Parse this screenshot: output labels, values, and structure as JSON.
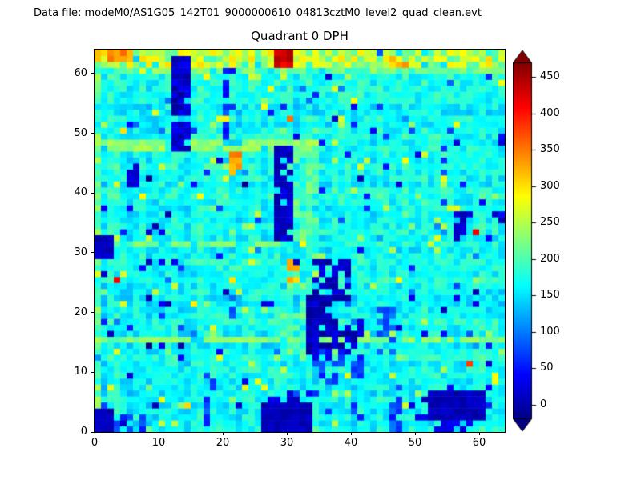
{
  "header": {
    "data_file_label": "Data file: modeM0/AS1G05_142T01_9000000610_04813cztM0_level2_quad_clean.evt"
  },
  "chart_data": {
    "type": "heatmap",
    "title": "Quadrant 0 DPH",
    "grid_size": [
      64,
      64
    ],
    "xlim": [
      0,
      64
    ],
    "ylim": [
      0,
      64
    ],
    "x_ticks": [
      0,
      10,
      20,
      30,
      40,
      50,
      60
    ],
    "y_ticks": [
      0,
      10,
      20,
      30,
      40,
      50,
      60
    ],
    "grid": false,
    "colormap": "jet",
    "vmin": -20,
    "vmax": 470,
    "colorbar": {
      "position": "right",
      "extend": "both",
      "ticks": [
        0,
        50,
        100,
        150,
        200,
        250,
        300,
        350,
        400,
        450
      ],
      "under_color": "#000080",
      "over_color": "#800000"
    },
    "noise": {
      "seed": 1234567,
      "base_level": 168,
      "row_col_variation": 24,
      "cell_variation": 55,
      "dark_dot_prob": 0.045,
      "bright_dot_prob": 0.045,
      "hot_dot_prob": 0.002
    },
    "features": [
      {
        "x0": 0,
        "x1": 63,
        "y0": 60,
        "y1": 60,
        "v": 215,
        "j": 60,
        "p": 0.7
      },
      {
        "x0": 0,
        "x1": 63,
        "y0": 61,
        "y1": 63,
        "v": 250,
        "j": 110,
        "p": 0.92
      },
      {
        "x0": 0,
        "x1": 5,
        "y0": 62,
        "y1": 63,
        "v": 340,
        "j": 70,
        "p": 0.9
      },
      {
        "x0": 28,
        "x1": 30,
        "y0": 61,
        "y1": 63,
        "v": 430,
        "j": 50,
        "p": 1
      },
      {
        "x0": 46,
        "x1": 48,
        "y0": 61,
        "y1": 62,
        "v": 320,
        "j": 70,
        "p": 0.75
      },
      {
        "x0": 0,
        "x1": 34,
        "y0": 47,
        "y1": 48,
        "v": 235,
        "j": 35,
        "p": 0.9
      },
      {
        "x0": 0,
        "x1": 63,
        "y0": 15,
        "y1": 15,
        "v": 225,
        "j": 35,
        "p": 0.8
      },
      {
        "x0": 0,
        "x1": 30,
        "y0": 31,
        "y1": 31,
        "v": 220,
        "j": 30,
        "p": 0.7
      },
      {
        "x0": 0,
        "x1": 0,
        "y0": 4,
        "y1": 59,
        "v": 215,
        "j": 70,
        "p": 0.6
      },
      {
        "x0": 31,
        "x1": 34,
        "y0": 32,
        "y1": 47,
        "v": 210,
        "j": 50,
        "p": 0.6
      },
      {
        "x0": 30,
        "x1": 32,
        "y0": 13,
        "y1": 24,
        "v": 205,
        "j": 50,
        "p": 0.5
      },
      {
        "x0": 21,
        "x1": 22,
        "y0": 43,
        "y1": 46,
        "v": 340,
        "j": 50,
        "p": 0.9
      },
      {
        "x0": 30,
        "x1": 31,
        "y0": 25,
        "y1": 28,
        "v": 320,
        "j": 60,
        "p": 0.7
      },
      {
        "x0": 0,
        "x1": 2,
        "y0": 0,
        "y1": 3,
        "v": 10,
        "j": 30,
        "p": 1
      },
      {
        "x0": 3,
        "x1": 7,
        "y0": 0,
        "y1": 2,
        "v": 60,
        "j": 70,
        "p": 0.5
      },
      {
        "x0": 26,
        "x1": 33,
        "y0": 0,
        "y1": 4,
        "v": 8,
        "j": 25,
        "p": 1
      },
      {
        "x0": 27,
        "x1": 31,
        "y0": 5,
        "y1": 6,
        "v": 20,
        "j": 40,
        "p": 0.6
      },
      {
        "x0": 52,
        "x1": 60,
        "y0": 2,
        "y1": 6,
        "v": 8,
        "j": 25,
        "p": 1
      },
      {
        "x0": 53,
        "x1": 58,
        "y0": 0,
        "y1": 1,
        "v": 30,
        "j": 50,
        "p": 0.7
      },
      {
        "x0": 12,
        "x1": 14,
        "y0": 47,
        "y1": 62,
        "v": 15,
        "j": 50,
        "p": 0.85
      },
      {
        "x0": 28,
        "x1": 30,
        "y0": 32,
        "y1": 47,
        "v": 12,
        "j": 40,
        "p": 0.9
      },
      {
        "x0": 33,
        "x1": 36,
        "y0": 13,
        "y1": 22,
        "v": 10,
        "j": 40,
        "p": 0.85
      },
      {
        "x0": 34,
        "x1": 39,
        "y0": 22,
        "y1": 28,
        "v": 12,
        "j": 40,
        "p": 0.7
      },
      {
        "x0": 36,
        "x1": 41,
        "y0": 14,
        "y1": 18,
        "v": 15,
        "j": 50,
        "p": 0.55
      },
      {
        "x0": 0,
        "x1": 2,
        "y0": 29,
        "y1": 32,
        "v": 10,
        "j": 30,
        "p": 1
      },
      {
        "x0": 46,
        "x1": 47,
        "y0": 0,
        "y1": 9,
        "v": 70,
        "j": 60,
        "p": 0.5
      },
      {
        "x0": 20,
        "x1": 21,
        "y0": 50,
        "y1": 60,
        "v": 60,
        "j": 60,
        "p": 0.45
      },
      {
        "x0": 40,
        "x1": 41,
        "y0": 2,
        "y1": 13,
        "v": 80,
        "j": 60,
        "p": 0.45
      },
      {
        "x0": 56,
        "x1": 57,
        "y0": 33,
        "y1": 36,
        "v": 12,
        "j": 30,
        "p": 0.8
      },
      {
        "x0": 5,
        "x1": 6,
        "y0": 41,
        "y1": 44,
        "v": 15,
        "j": 30,
        "p": 0.7
      },
      {
        "x0": 17,
        "x1": 18,
        "y0": 1,
        "y1": 8,
        "v": 70,
        "j": 60,
        "p": 0.4
      },
      {
        "x0": 34,
        "x1": 38,
        "y0": 8,
        "y1": 13,
        "v": 60,
        "j": 70,
        "p": 0.5
      },
      {
        "x0": 44,
        "x1": 46,
        "y0": 13,
        "y1": 20,
        "v": 90,
        "j": 60,
        "p": 0.4
      }
    ]
  },
  "colors": {
    "background": "#ffffff",
    "axis": "#000000",
    "text": "#000000"
  }
}
